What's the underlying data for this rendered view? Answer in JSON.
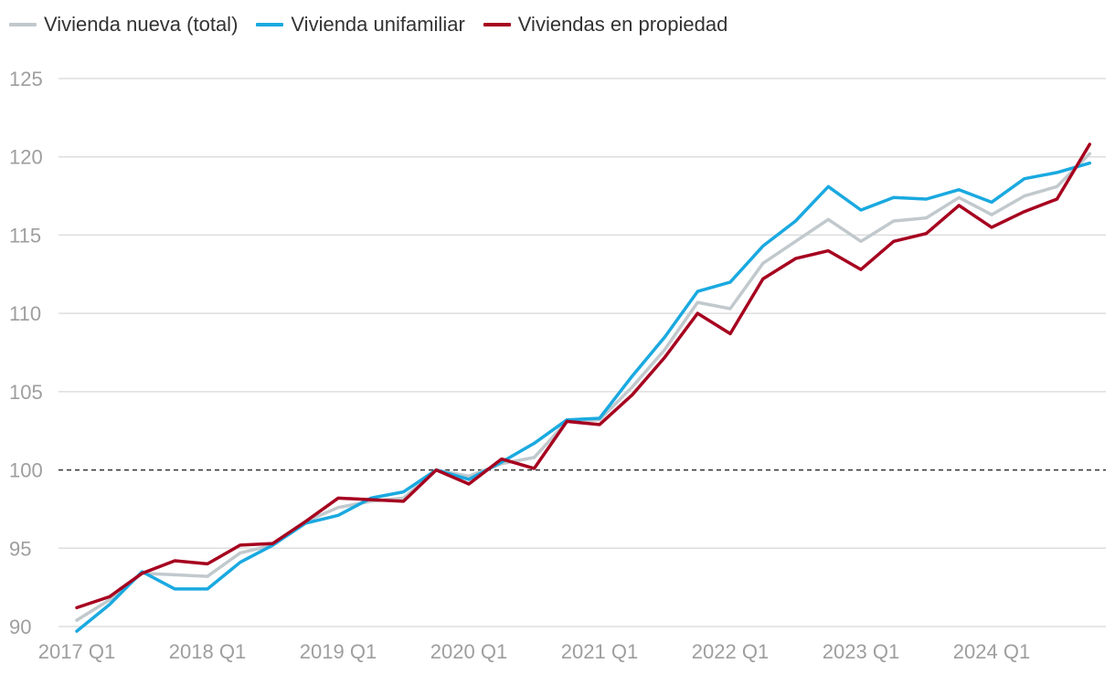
{
  "chart_data": {
    "type": "line",
    "title": "",
    "xlabel": "",
    "ylabel": "",
    "ylim": [
      90,
      125
    ],
    "yticks": [
      90,
      95,
      100,
      105,
      110,
      115,
      120,
      125
    ],
    "reference_line": 100,
    "grid": true,
    "legend_position": "top-left",
    "xtick_labels": [
      "2017 Q1",
      "2018 Q1",
      "2019 Q1",
      "2020 Q1",
      "2021 Q1",
      "2022 Q1",
      "2023 Q1",
      "2024 Q1"
    ],
    "xtick_indices": [
      0,
      4,
      8,
      12,
      16,
      20,
      24,
      28
    ],
    "x": [
      "2017 Q1",
      "2017 Q2",
      "2017 Q3",
      "2017 Q4",
      "2018 Q1",
      "2018 Q2",
      "2018 Q3",
      "2018 Q4",
      "2019 Q1",
      "2019 Q2",
      "2019 Q3",
      "2019 Q4",
      "2020 Q1",
      "2020 Q2",
      "2020 Q3",
      "2020 Q4",
      "2021 Q1",
      "2021 Q2",
      "2021 Q3",
      "2021 Q4",
      "2022 Q1",
      "2022 Q2",
      "2022 Q3",
      "2022 Q4",
      "2023 Q1",
      "2023 Q2",
      "2023 Q3",
      "2023 Q4",
      "2024 Q1",
      "2024 Q2",
      "2024 Q3",
      "2024 Q4"
    ],
    "series": [
      {
        "name": "Vivienda nueva (total)",
        "color": "#c1c9cd",
        "values": [
          90.4,
          91.7,
          93.4,
          93.3,
          93.2,
          94.7,
          95.2,
          96.7,
          97.6,
          98.0,
          98.2,
          100.0,
          99.6,
          100.4,
          100.8,
          103.1,
          103.2,
          105.3,
          107.7,
          110.7,
          110.3,
          113.2,
          114.6,
          116.0,
          114.6,
          115.9,
          116.1,
          117.4,
          116.3,
          117.5,
          118.1,
          120.2
        ]
      },
      {
        "name": "Vivienda unifamiliar",
        "color": "#1aa9e0",
        "values": [
          89.7,
          91.4,
          93.5,
          92.4,
          92.4,
          94.1,
          95.2,
          96.6,
          97.1,
          98.2,
          98.6,
          100.0,
          99.4,
          100.5,
          101.7,
          103.2,
          103.3,
          106.0,
          108.5,
          111.4,
          112.0,
          114.3,
          115.9,
          118.1,
          116.6,
          117.4,
          117.3,
          117.9,
          117.1,
          118.6,
          119.0,
          119.6
        ]
      },
      {
        "name": "Viviendas en propiedad",
        "color": "#a6001f",
        "values": [
          91.2,
          91.9,
          93.4,
          94.2,
          94.0,
          95.2,
          95.3,
          96.7,
          98.2,
          98.1,
          98.0,
          100.0,
          99.1,
          100.7,
          100.1,
          103.1,
          102.9,
          104.8,
          107.2,
          110.0,
          108.7,
          112.2,
          113.5,
          114.0,
          112.8,
          114.6,
          115.1,
          116.9,
          115.5,
          116.5,
          117.3,
          120.8
        ]
      }
    ]
  }
}
